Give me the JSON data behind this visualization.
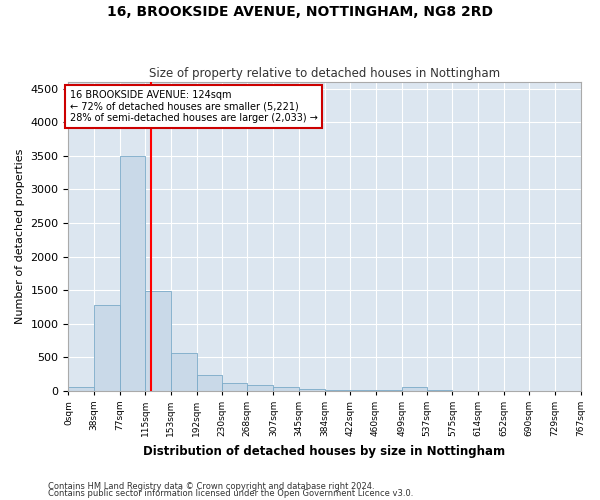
{
  "title": "16, BROOKSIDE AVENUE, NOTTINGHAM, NG8 2RD",
  "subtitle": "Size of property relative to detached houses in Nottingham",
  "xlabel": "Distribution of detached houses by size in Nottingham",
  "ylabel": "Number of detached properties",
  "bar_color": "#c9d9e8",
  "bar_edge_color": "#7aaac8",
  "bg_color": "#dce6f0",
  "grid_color": "#ffffff",
  "fig_bg_color": "#ffffff",
  "red_line_x": 124,
  "annotation_line1": "16 BROOKSIDE AVENUE: 124sqm",
  "annotation_line2": "← 72% of detached houses are smaller (5,221)",
  "annotation_line3": "28% of semi-detached houses are larger (2,033) →",
  "annotation_box_color": "#cc0000",
  "footnote1": "Contains HM Land Registry data © Crown copyright and database right 2024.",
  "footnote2": "Contains public sector information licensed under the Open Government Licence v3.0.",
  "bin_edges": [
    0,
    38,
    77,
    115,
    153,
    192,
    230,
    268,
    307,
    345,
    384,
    422,
    460,
    499,
    537,
    575,
    614,
    652,
    690,
    729,
    767
  ],
  "bin_values": [
    50,
    1280,
    3500,
    1480,
    570,
    240,
    115,
    80,
    50,
    30,
    15,
    10,
    5,
    55,
    5,
    0,
    0,
    0,
    0,
    0
  ],
  "ylim": [
    0,
    4600
  ],
  "yticks": [
    0,
    500,
    1000,
    1500,
    2000,
    2500,
    3000,
    3500,
    4000,
    4500
  ]
}
